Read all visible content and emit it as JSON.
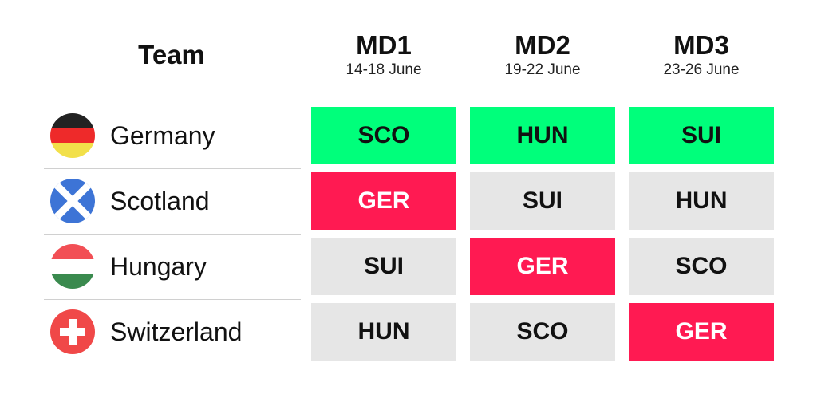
{
  "header": {
    "team_label": "Team",
    "matchdays": [
      {
        "title": "MD1",
        "dates": "14-18 June"
      },
      {
        "title": "MD2",
        "dates": "19-22 June"
      },
      {
        "title": "MD3",
        "dates": "23-26 June"
      }
    ]
  },
  "teams": [
    {
      "name": "Germany",
      "flag_icon": "germany-flag-icon",
      "fixtures": [
        "SCO",
        "HUN",
        "SUI"
      ]
    },
    {
      "name": "Scotland",
      "flag_icon": "scotland-flag-icon",
      "fixtures": [
        "GER",
        "SUI",
        "HUN"
      ]
    },
    {
      "name": "Hungary",
      "flag_icon": "hungary-flag-icon",
      "fixtures": [
        "SUI",
        "GER",
        "SCO"
      ]
    },
    {
      "name": "Switzerland",
      "flag_icon": "switzerland-flag-icon",
      "fixtures": [
        "HUN",
        "SCO",
        "GER"
      ]
    }
  ],
  "colors": {
    "germany_row": "#00ff7b",
    "vs_germany": "#ff1a52",
    "neutral": "#e6e6e6"
  }
}
